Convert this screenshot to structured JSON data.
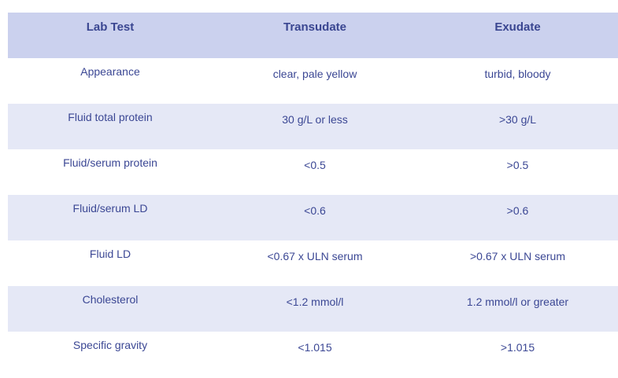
{
  "table": {
    "headers": [
      "Lab Test",
      "Transudate",
      "Exudate"
    ],
    "rows": [
      [
        "Appearance",
        "clear, pale yellow",
        "turbid, bloody"
      ],
      [
        "Fluid total protein",
        "30 g/L or less",
        ">30 g/L"
      ],
      [
        "Fluid/serum protein",
        "<0.5",
        ">0.5"
      ],
      [
        "Fluid/serum LD",
        "<0.6",
        ">0.6"
      ],
      [
        "Fluid LD",
        "<0.67 x ULN serum",
        ">0.67 x ULN serum"
      ],
      [
        "Cholesterol",
        "<1.2 mmol/l",
        "1.2 mmol/l or greater"
      ],
      [
        "Specific gravity",
        "<1.015",
        ">1.015"
      ]
    ]
  },
  "colors": {
    "header_bg": "#cbd1ee",
    "stripe_bg": "#e5e8f6",
    "text": "#3b4794"
  }
}
